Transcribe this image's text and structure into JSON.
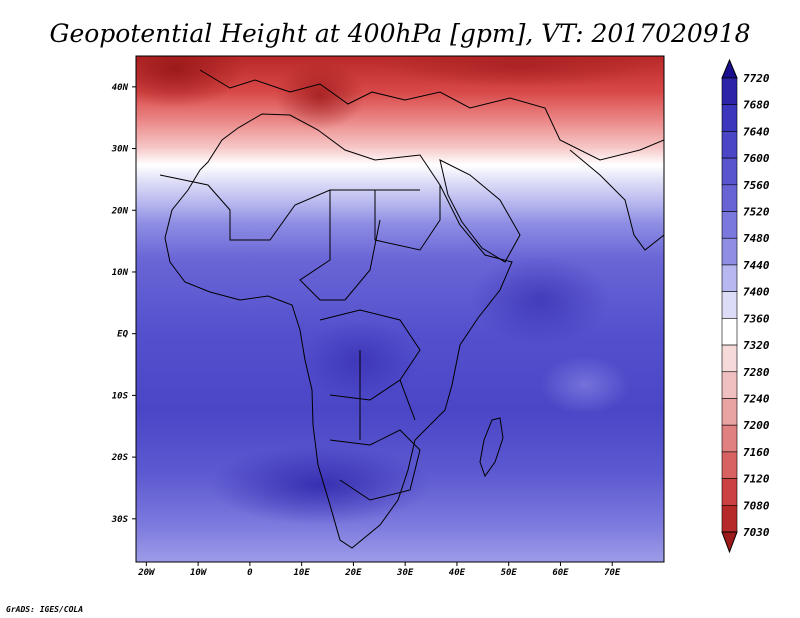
{
  "title": "Geopotential Height at 400hPa [gpm], VT: 2017020918",
  "credit": "GrADS: IGES/COLA",
  "map": {
    "lon_range": [
      -22,
      80
    ],
    "lat_range": [
      -37,
      45
    ],
    "lon_ticks": [
      "20W",
      "10W",
      "0",
      "10E",
      "20E",
      "30E",
      "40E",
      "50E",
      "60E",
      "70E"
    ],
    "lat_ticks": [
      "40N",
      "30N",
      "20N",
      "10N",
      "EQ",
      "10S",
      "20S",
      "30S"
    ]
  },
  "legend": {
    "labels": [
      "7720",
      "7680",
      "7640",
      "7600",
      "7560",
      "7520",
      "7480",
      "7440",
      "7400",
      "7360",
      "7320",
      "7280",
      "7240",
      "7200",
      "7160",
      "7120",
      "7080",
      "7030"
    ],
    "colors": [
      "#1a0f8c",
      "#2c23a8",
      "#3b36bb",
      "#4a46c6",
      "#5955cf",
      "#6964d6",
      "#7a77dd",
      "#8f8ee4",
      "#b7b8ef",
      "#dcdcf7",
      "#ffffff",
      "#f6dada",
      "#f0c0c0",
      "#e8a3a3",
      "#e08080",
      "#d86262",
      "#cc4141",
      "#b72a2a",
      "#9c1a1a"
    ]
  }
}
